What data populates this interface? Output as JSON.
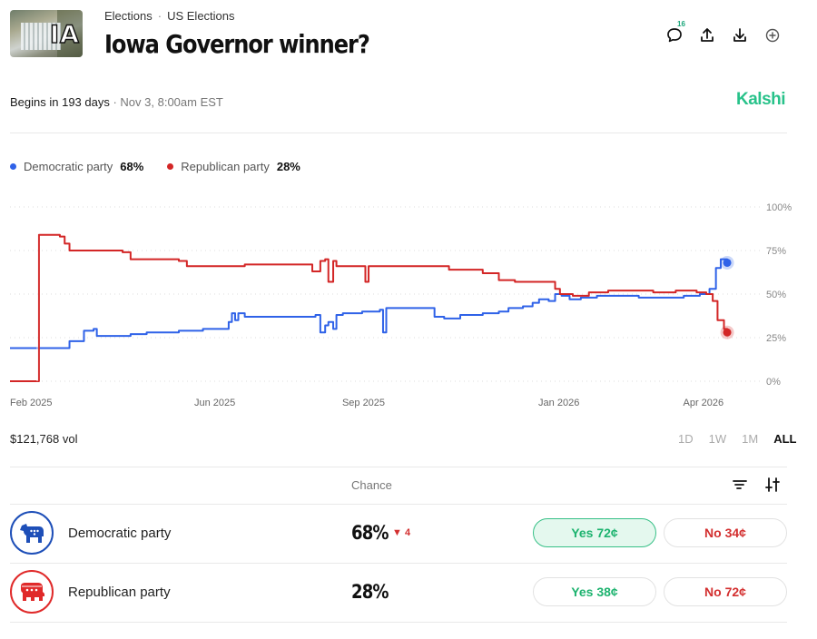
{
  "header": {
    "image_label": "IA",
    "breadcrumbs": [
      "Elections",
      "US Elections"
    ],
    "title": "Iowa Governor winner?",
    "comments_count": "16",
    "brand": "Kalshi"
  },
  "timing": {
    "begins": "Begins in 193 days",
    "date": " · Nov 3, 8:00am EST"
  },
  "legend": [
    {
      "name": "Democratic party",
      "value": "68%",
      "color": "#2f62e8"
    },
    {
      "name": "Republican party",
      "value": "28%",
      "color": "#d32626"
    }
  ],
  "chart_data": {
    "type": "line",
    "x_tick_labels": [
      "Feb 2025",
      "Jun 2025",
      "Sep 2025",
      "Jan 2026",
      "Apr 2026"
    ],
    "x_ticks": [
      "2025-02-01",
      "2025-06-01",
      "2025-09-01",
      "2026-01-01",
      "2026-04-01"
    ],
    "y_tick_labels": [
      "100%",
      "75%",
      "50%",
      "25%",
      "0%"
    ],
    "ylim": [
      0,
      100
    ],
    "xlim": [
      "2025-01-25",
      "2026-04-25"
    ],
    "grid": true,
    "series": [
      {
        "name": "Democratic party",
        "color": "#2f62e8",
        "x": [
          "2025-01-25",
          "2025-02-28",
          "2025-03-03",
          "2025-03-12",
          "2025-03-18",
          "2025-03-20",
          "2025-04-10",
          "2025-04-20",
          "2025-05-10",
          "2025-05-25",
          "2025-06-10",
          "2025-06-12",
          "2025-06-14",
          "2025-06-16",
          "2025-06-20",
          "2025-07-10",
          "2025-08-01",
          "2025-08-03",
          "2025-08-06",
          "2025-08-09",
          "2025-08-11",
          "2025-08-14",
          "2025-08-16",
          "2025-08-20",
          "2025-09-01",
          "2025-09-10",
          "2025-09-12",
          "2025-09-14",
          "2025-09-16",
          "2025-10-01",
          "2025-10-12",
          "2025-10-16",
          "2025-10-22",
          "2025-11-01",
          "2025-11-15",
          "2025-11-25",
          "2025-12-01",
          "2025-12-10",
          "2025-12-16",
          "2025-12-20",
          "2025-12-26",
          "2025-12-30",
          "2026-01-03",
          "2026-01-08",
          "2026-01-15",
          "2026-01-25",
          "2026-02-05",
          "2026-02-20",
          "2026-03-05",
          "2026-03-20",
          "2026-03-30",
          "2026-04-05",
          "2026-04-09",
          "2026-04-12",
          "2026-04-16"
        ],
        "y": [
          19,
          19,
          23,
          29,
          30,
          26,
          27,
          28,
          29,
          30,
          34,
          39,
          35,
          39,
          37,
          37,
          37,
          38,
          28,
          32,
          34,
          30,
          38,
          39,
          40,
          40,
          41,
          28,
          42,
          42,
          42,
          37,
          36,
          38,
          39,
          40,
          42,
          43,
          45,
          47,
          46,
          50,
          49,
          47,
          48,
          49,
          49,
          48,
          48,
          49,
          50,
          53,
          65,
          70,
          68
        ]
      },
      {
        "name": "Republican party",
        "color": "#d32626",
        "x": [
          "2025-01-25",
          "2025-02-11",
          "2025-02-12",
          "2025-02-25",
          "2025-02-28",
          "2025-03-03",
          "2025-04-05",
          "2025-04-10",
          "2025-05-10",
          "2025-05-15",
          "2025-06-20",
          "2025-06-25",
          "2025-07-10",
          "2025-08-01",
          "2025-08-04",
          "2025-08-06",
          "2025-08-09",
          "2025-08-11",
          "2025-08-14",
          "2025-08-16",
          "2025-08-20",
          "2025-09-01",
          "2025-09-03",
          "2025-09-05",
          "2025-09-10",
          "2025-10-20",
          "2025-10-25",
          "2025-11-01",
          "2025-11-15",
          "2025-11-25",
          "2025-12-05",
          "2025-12-20",
          "2025-12-26",
          "2025-12-30",
          "2026-01-02",
          "2026-01-10",
          "2026-01-20",
          "2026-02-01",
          "2026-02-15",
          "2026-03-01",
          "2026-03-15",
          "2026-03-28",
          "2026-04-03",
          "2026-04-07",
          "2026-04-10",
          "2026-04-14",
          "2026-04-16"
        ],
        "y": [
          0,
          0,
          84,
          83,
          79,
          75,
          74,
          70,
          69,
          66,
          67,
          67,
          67,
          63,
          63,
          69,
          70,
          57,
          69,
          66,
          66,
          66,
          57,
          66,
          66,
          66,
          64,
          64,
          62,
          58,
          57,
          57,
          57,
          53,
          50,
          49,
          51,
          52,
          52,
          51,
          52,
          51,
          50,
          46,
          35,
          30,
          28
        ]
      }
    ],
    "end_markers": [
      "Democratic party",
      "Republican party"
    ]
  },
  "volume": "$121,768 vol",
  "ranges": [
    {
      "label": "1D",
      "active": false
    },
    {
      "label": "1W",
      "active": false
    },
    {
      "label": "1M",
      "active": false
    },
    {
      "label": "ALL",
      "active": true
    }
  ],
  "table": {
    "column_header": "Chance",
    "rows": [
      {
        "party": "Democratic party",
        "chance": "68%",
        "change": "▼ 4",
        "yes": "Yes 72¢",
        "no": "No 34¢",
        "color": "#1e4fb8",
        "icon": "democratic-donkey-icon"
      },
      {
        "party": "Republican party",
        "chance": "28%",
        "change": "",
        "yes": "Yes 38¢",
        "no": "No 72¢",
        "color": "#e02a2a",
        "icon": "republican-elephant-icon"
      }
    ]
  }
}
